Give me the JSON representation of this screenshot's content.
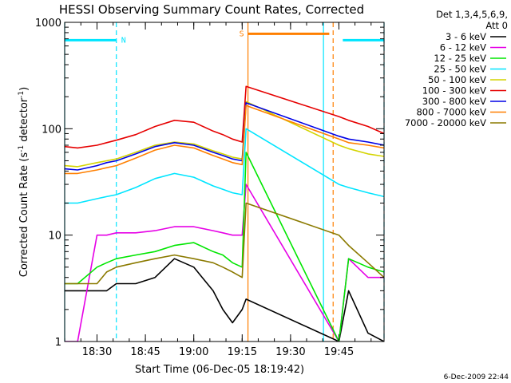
{
  "chart_data": {
    "type": "line",
    "title": "HESSI Observing Summary Count Rates, Corrected",
    "xlabel": "Start Time (06-Dec-05 18:19:42)",
    "ylabel": "Corrected Count Rate (s",
    "ylabel_sup1": "-1",
    "ylabel_mid": " detector",
    "ylabel_sup2": "-1",
    "ylabel_end": ")",
    "yscale": "log",
    "xlim_min": [
      18.333,
      19.983
    ],
    "ylim": [
      1,
      1000
    ],
    "x_ticks": [
      {
        "v": 18.5,
        "label": "18:30"
      },
      {
        "v": 18.75,
        "label": "18:45"
      },
      {
        "v": 19.0,
        "label": "19:00"
      },
      {
        "v": 19.25,
        "label": "19:15"
      },
      {
        "v": 19.5,
        "label": "19:30"
      },
      {
        "v": 19.75,
        "label": "19:45"
      }
    ],
    "y_ticks": [
      {
        "v": 1,
        "label": "1"
      },
      {
        "v": 10,
        "label": "10"
      },
      {
        "v": 100,
        "label": "100"
      },
      {
        "v": 1000,
        "label": "1000"
      }
    ],
    "legend_header_1": "Det 1,3,4,5,6,9,",
    "legend_header_2": "Att 0",
    "legend_position": "right",
    "flags": [
      {
        "label": "N",
        "color": "#00e5ff",
        "start": 18.333,
        "end": 18.6,
        "level": 680
      },
      {
        "label": "S",
        "color": "#ff7f00",
        "start": 19.28,
        "end": 19.7,
        "level": 780
      },
      {
        "label": "",
        "color": "#00e5ff",
        "start": 19.77,
        "end": 19.983,
        "level": 680
      }
    ],
    "vlines": [
      {
        "x": 18.333,
        "color": "#00e5ff",
        "dash": false
      },
      {
        "x": 18.6,
        "color": "#00e5ff",
        "dash": true
      },
      {
        "x": 19.28,
        "color": "#ff7f00",
        "dash": false
      },
      {
        "x": 19.67,
        "color": "#00e5ff",
        "dash": false
      },
      {
        "x": 19.72,
        "color": "#ff7f00",
        "dash": true
      },
      {
        "x": 19.983,
        "color": "#00e5ff",
        "dash": true
      }
    ],
    "gap": [
      19.28,
      19.73
    ],
    "x": [
      18.333,
      18.4,
      18.5,
      18.55,
      18.6,
      18.7,
      18.8,
      18.9,
      19.0,
      19.1,
      19.15,
      19.2,
      19.25,
      19.27,
      19.75,
      19.8,
      19.9,
      19.983
    ],
    "series": [
      {
        "name": "3 - 6 keV",
        "color": "#000000",
        "values": [
          3,
          3,
          3,
          3,
          3.5,
          3.5,
          4,
          6,
          5,
          3,
          2,
          1.5,
          2,
          2.5,
          1,
          3,
          1.2,
          1
        ]
      },
      {
        "name": "6 - 12 keV",
        "color": "#e600e6",
        "values": [
          1,
          1,
          10,
          10,
          10.5,
          10.5,
          11,
          12,
          12,
          11,
          10.5,
          10,
          10,
          30,
          1,
          6,
          4,
          4
        ]
      },
      {
        "name": "12 - 25 keV",
        "color": "#00e600",
        "values": [
          3.5,
          3.5,
          5,
          5.5,
          6,
          6.5,
          7,
          8,
          8.5,
          7,
          6.5,
          5.5,
          5,
          60,
          1,
          6,
          5,
          4.5
        ]
      },
      {
        "name": "25 - 50 keV",
        "color": "#00e5ff",
        "values": [
          20,
          20,
          22,
          23,
          24,
          28,
          34,
          38,
          35,
          29,
          27,
          25,
          24,
          100,
          30,
          28,
          25,
          23
        ]
      },
      {
        "name": "50 - 100 keV",
        "color": "#d4d400",
        "values": [
          45,
          44,
          48,
          50,
          52,
          60,
          70,
          75,
          72,
          62,
          58,
          54,
          52,
          180,
          70,
          65,
          58,
          55
        ]
      },
      {
        "name": "100 - 300 keV",
        "color": "#e60000",
        "values": [
          68,
          66,
          70,
          74,
          78,
          88,
          105,
          120,
          115,
          95,
          88,
          80,
          75,
          250,
          130,
          120,
          105,
          90
        ]
      },
      {
        "name": "300 - 800 keV",
        "color": "#0000e6",
        "values": [
          42,
          41,
          45,
          48,
          50,
          58,
          68,
          74,
          70,
          60,
          56,
          52,
          50,
          175,
          85,
          80,
          75,
          70
        ]
      },
      {
        "name": "800 - 7000 keV",
        "color": "#ff7f00",
        "values": [
          38,
          38,
          41,
          43,
          45,
          53,
          63,
          70,
          66,
          56,
          52,
          48,
          46,
          165,
          80,
          74,
          70,
          66
        ]
      },
      {
        "name": "7000 - 20000 keV",
        "color": "#8b7a00",
        "values": [
          3.5,
          3.5,
          3.5,
          4.5,
          5,
          5.5,
          6,
          6.5,
          6,
          5.5,
          5,
          4.5,
          4,
          20,
          10,
          8,
          5.5,
          4
        ]
      }
    ]
  },
  "timestamp": "6-Dec-2009 22:44"
}
